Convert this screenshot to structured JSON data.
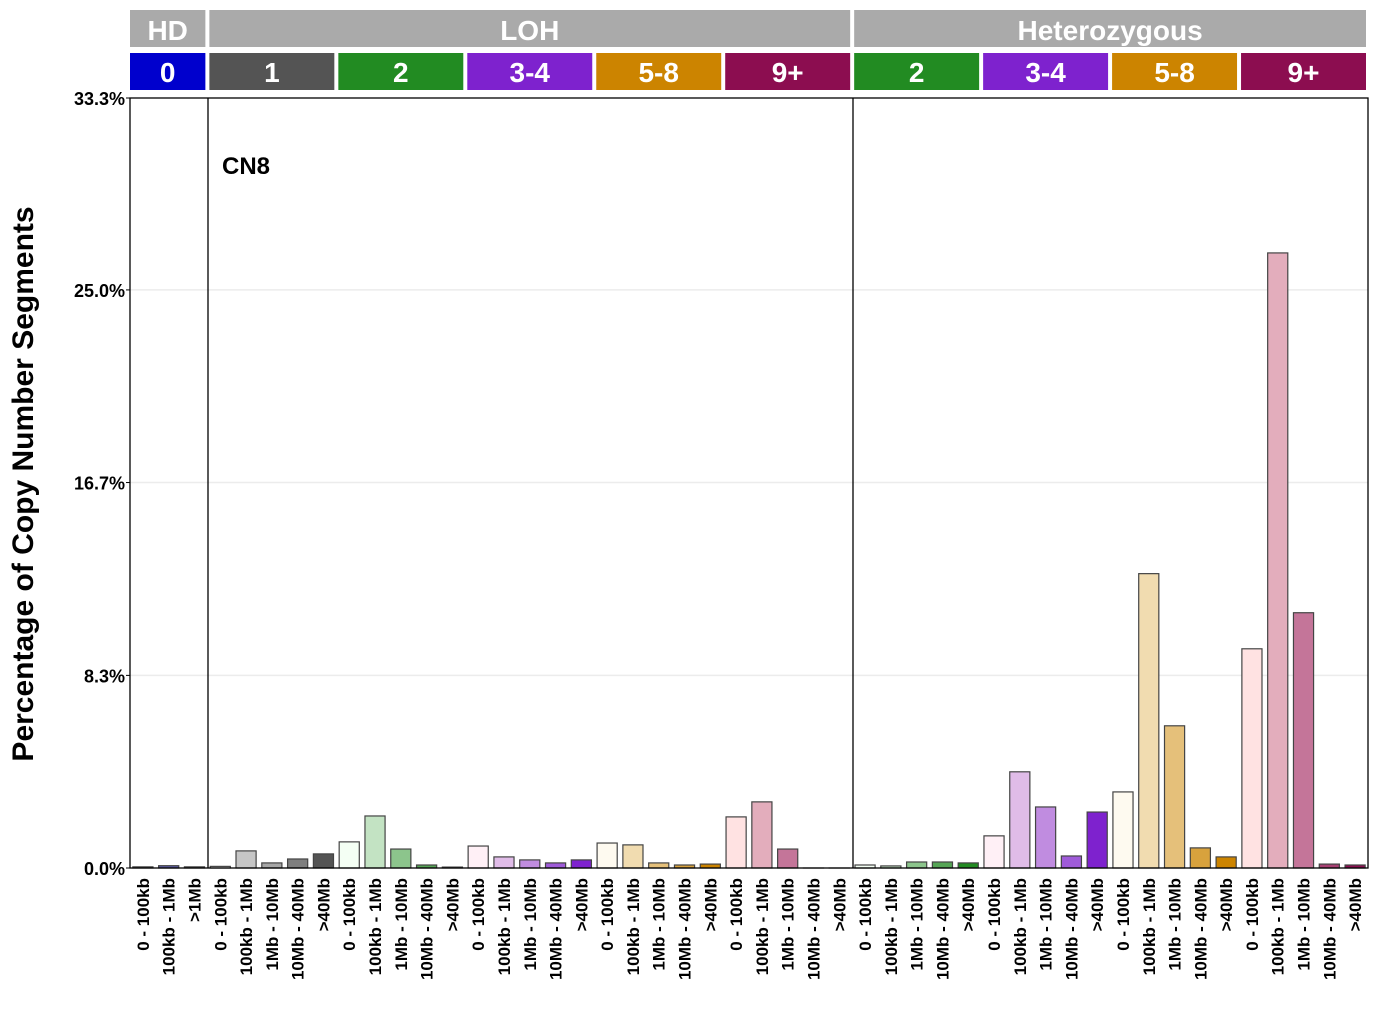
{
  "chart_data": {
    "type": "bar",
    "ylabel": "Percentage of Copy Number Segments",
    "annotation": "CN8",
    "ylim": [
      0,
      33.3
    ],
    "yticks": [
      "0.0%",
      "8.3%",
      "16.7%",
      "25.0%",
      "33.3%"
    ],
    "ytick_values": [
      0,
      8.33,
      16.67,
      25.0,
      33.3
    ],
    "grid": true,
    "header_groups": [
      {
        "label": "HD",
        "color": "#aaaaaa"
      },
      {
        "label": "LOH",
        "color": "#aaaaaa"
      },
      {
        "label": "Heterozygous",
        "color": "#aaaaaa"
      }
    ],
    "groups": [
      {
        "state": "HD",
        "cn": "0",
        "color": "#0000cd",
        "categories": [
          "0 - 100kb",
          "100kb - 1Mb",
          ">1Mb"
        ],
        "values": [
          0.05,
          0.1,
          0.05
        ],
        "bar_colors": [
          "#8080ff",
          "#5c5caa",
          "#20205a"
        ]
      },
      {
        "state": "LOH",
        "cn": "1",
        "color": "#545454",
        "categories": [
          "0 - 100kb",
          "100kb - 1Mb",
          "1Mb - 10Mb",
          "10Mb - 40Mb",
          ">40Mb"
        ],
        "values": [
          0.07,
          0.74,
          0.22,
          0.39,
          0.61
        ],
        "bar_colors": [
          "#f0f0f0",
          "#c6c6c6",
          "#a6a6a6",
          "#7f7f7f",
          "#545454"
        ]
      },
      {
        "state": "LOH",
        "cn": "2",
        "color": "#228b22",
        "categories": [
          "0 - 100kb",
          "100kb - 1Mb",
          "1Mb - 10Mb",
          "10Mb - 40Mb",
          ">40Mb"
        ],
        "values": [
          1.13,
          2.25,
          0.82,
          0.13,
          0.04
        ],
        "bar_colors": [
          "#f4fff4",
          "#c3e3c3",
          "#8cc58c",
          "#55a555",
          "#228b22"
        ]
      },
      {
        "state": "LOH",
        "cn": "3-4",
        "color": "#7e22ce",
        "categories": [
          "0 - 100kb",
          "100kb - 1Mb",
          "1Mb - 10Mb",
          "10Mb - 40Mb",
          ">40Mb"
        ],
        "values": [
          0.95,
          0.48,
          0.35,
          0.22,
          0.35
        ],
        "bar_colors": [
          "#fff0f6",
          "#e0bce8",
          "#c08ce0",
          "#9f5bd9",
          "#7e22ce"
        ]
      },
      {
        "state": "LOH",
        "cn": "5-8",
        "color": "#cc8400",
        "categories": [
          "0 - 100kb",
          "100kb - 1Mb",
          "1Mb - 10Mb",
          "10Mb - 40Mb",
          ">40Mb"
        ],
        "values": [
          1.08,
          1.0,
          0.22,
          0.13,
          0.17
        ],
        "bar_colors": [
          "#fefaf0",
          "#f1dcb0",
          "#e5c07a",
          "#d8a23d",
          "#cc8400"
        ]
      },
      {
        "state": "LOH",
        "cn": "9+",
        "color": "#8c0d50",
        "categories": [
          "0 - 100kb",
          "100kb - 1Mb",
          "1Mb - 10Mb",
          "10Mb - 40Mb",
          ">40Mb"
        ],
        "values": [
          2.21,
          2.86,
          0.82,
          0,
          0
        ],
        "bar_colors": [
          "#ffe2e2",
          "#e3adbc",
          "#c47599",
          "#a84073",
          "#8c0d50"
        ]
      },
      {
        "state": "Heterozygous",
        "cn": "2",
        "color": "#228b22",
        "categories": [
          "0 - 100kb",
          "100kb - 1Mb",
          "1Mb - 10Mb",
          "10Mb - 40Mb",
          ">40Mb"
        ],
        "values": [
          0.13,
          0.09,
          0.26,
          0.26,
          0.22
        ],
        "bar_colors": [
          "#f4fff4",
          "#c3e3c3",
          "#8cc58c",
          "#55a555",
          "#228b22"
        ]
      },
      {
        "state": "Heterozygous",
        "cn": "3-4",
        "color": "#7e22ce",
        "categories": [
          "0 - 100kb",
          "100kb - 1Mb",
          "1Mb - 10Mb",
          "10Mb - 40Mb",
          ">40Mb"
        ],
        "values": [
          1.39,
          4.16,
          2.64,
          0.52,
          2.42
        ],
        "bar_colors": [
          "#fff0f6",
          "#e0bce8",
          "#c08ce0",
          "#9f5bd9",
          "#7e22ce"
        ]
      },
      {
        "state": "Heterozygous",
        "cn": "5-8",
        "color": "#cc8400",
        "categories": [
          "0 - 100kb",
          "100kb - 1Mb",
          "1Mb - 10Mb",
          "10Mb - 40Mb",
          ">40Mb"
        ],
        "values": [
          3.29,
          12.73,
          6.15,
          0.87,
          0.48
        ],
        "bar_colors": [
          "#fefaf0",
          "#f1dcb0",
          "#e5c07a",
          "#d8a23d",
          "#cc8400"
        ]
      },
      {
        "state": "Heterozygous",
        "cn": "9+",
        "color": "#8c0d50",
        "categories": [
          "0 - 100kb",
          "100kb - 1Mb",
          "1Mb - 10Mb",
          "10Mb - 40Mb",
          ">40Mb"
        ],
        "values": [
          9.48,
          26.6,
          11.04,
          0.17,
          0.13
        ],
        "bar_colors": [
          "#ffe2e2",
          "#e3adbc",
          "#c47599",
          "#a84073",
          "#8c0d50"
        ]
      }
    ]
  }
}
